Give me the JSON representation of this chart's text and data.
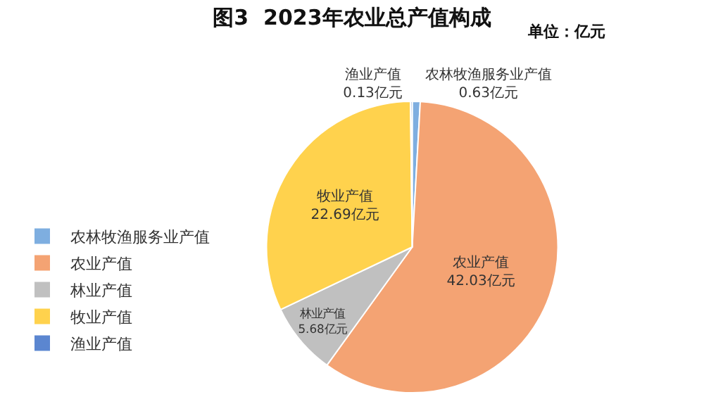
{
  "chart_data": {
    "type": "pie",
    "title": "图3  2023年农业总产值构成",
    "subtitle": "单位：亿元",
    "categories": [
      "农林牧渔服务业产值",
      "农业产值",
      "林业产值",
      "牧业产值",
      "渔业产值"
    ],
    "values": [
      0.63,
      42.03,
      5.68,
      22.69,
      0.13
    ],
    "colors": [
      "#7eaee0",
      "#f4a373",
      "#c0c0c0",
      "#ffd24d",
      "#5b86d0"
    ],
    "value_labels": [
      "0.63亿元",
      "42.03亿元",
      "5.68亿元",
      "22.69亿元",
      "0.13亿元"
    ],
    "legend": "left"
  }
}
